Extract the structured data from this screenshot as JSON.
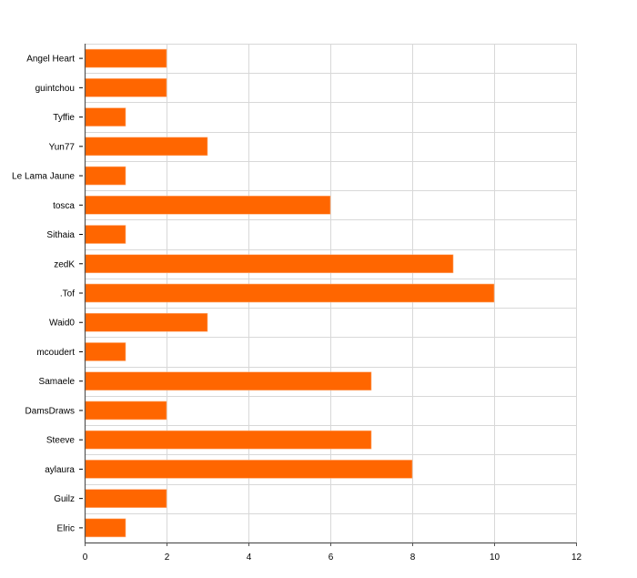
{
  "chart_data": {
    "type": "bar",
    "orientation": "horizontal",
    "title": "",
    "xlabel": "",
    "ylabel": "",
    "categories": [
      "Angel Heart",
      "guintchou",
      "Tyffie",
      "Yun77",
      "Le Lama Jaune",
      "tosca",
      "Sithaia",
      "zedK",
      ".Tof",
      "Waid0",
      "mcoudert",
      "Samaele",
      "DamsDraws",
      "Steeve",
      "aylaura",
      "Guilz",
      "Elric"
    ],
    "values": [
      2,
      2,
      1,
      3,
      1,
      6,
      1,
      9,
      10,
      3,
      1,
      7,
      2,
      7,
      8,
      2,
      1
    ],
    "xlim": [
      0,
      12
    ],
    "xticks": [
      "0",
      "2",
      "4",
      "6",
      "8",
      "10",
      "12"
    ],
    "grid": true,
    "bar_color": "#ff6600"
  }
}
